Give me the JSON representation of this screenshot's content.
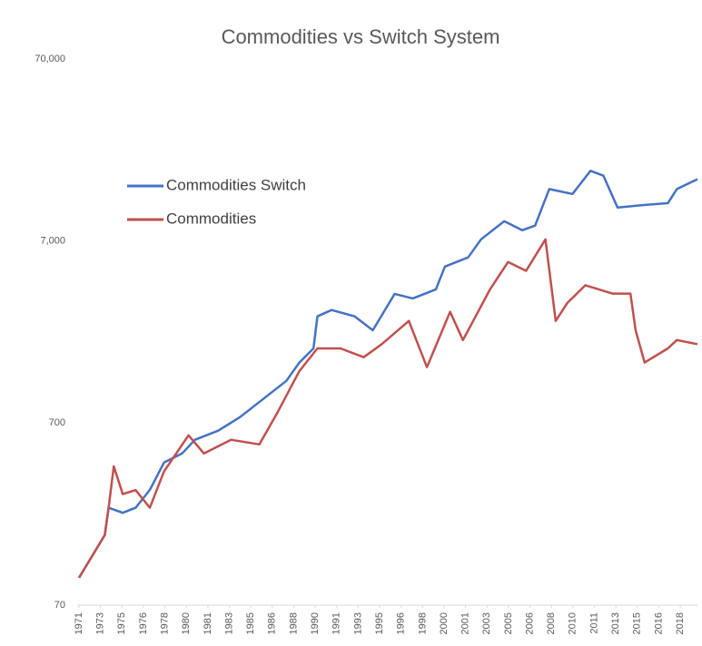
{
  "chart_data": {
    "type": "line",
    "title": "Commodities vs Switch System",
    "log_scale": true,
    "ylim": [
      70,
      70000
    ],
    "yticks": [
      70,
      700,
      {
        "value": 7000,
        "label": "7,000"
      },
      {
        "value": 70000,
        "label": "70,000"
      }
    ],
    "xlim": [
      1971,
      2019
    ],
    "xticks": [
      {
        "value": 1971,
        "label": "1971"
      },
      {
        "value": 1972.67,
        "label": "1973"
      },
      {
        "value": 1974.33,
        "label": "1975"
      },
      {
        "value": 1976,
        "label": "1976"
      },
      {
        "value": 1977.67,
        "label": "1978"
      },
      {
        "value": 1979.33,
        "label": "1980"
      },
      {
        "value": 1981,
        "label": "1981"
      },
      {
        "value": 1982.67,
        "label": "1983"
      },
      {
        "value": 1984.33,
        "label": "1985"
      },
      {
        "value": 1986,
        "label": "1986"
      },
      {
        "value": 1987.67,
        "label": "1988"
      },
      {
        "value": 1989.33,
        "label": "1990"
      },
      {
        "value": 1991,
        "label": "1991"
      },
      {
        "value": 1992.67,
        "label": "1993"
      },
      {
        "value": 1994.33,
        "label": "1995"
      },
      {
        "value": 1996,
        "label": "1996"
      },
      {
        "value": 1997.67,
        "label": "1998"
      },
      {
        "value": 1999.33,
        "label": "2000"
      },
      {
        "value": 2001,
        "label": "2001"
      },
      {
        "value": 2002.67,
        "label": "2003"
      },
      {
        "value": 2004.33,
        "label": "2005"
      },
      {
        "value": 2006,
        "label": "2006"
      },
      {
        "value": 2007.67,
        "label": "2008"
      },
      {
        "value": 2009.33,
        "label": "2010"
      },
      {
        "value": 2011,
        "label": "2011"
      },
      {
        "value": 2012.67,
        "label": "2013"
      },
      {
        "value": 2014.33,
        "label": "2015"
      },
      {
        "value": 2016,
        "label": "2016"
      },
      {
        "value": 2017.67,
        "label": "2018"
      }
    ],
    "legend": "upper left",
    "series": [
      {
        "name": "Commodities Switch",
        "color": "#4472c4",
        "x": [
          1971.0,
          1973.0,
          1973.3,
          1974.4,
          1975.4,
          1976.5,
          1977.6,
          1979.0,
          1980.0,
          1981.8,
          1983.5,
          1985.3,
          1987.1,
          1988.1,
          1989.2,
          1989.5,
          1990.6,
          1992.4,
          1993.8,
          1995.5,
          1996.9,
          1998.7,
          1999.4,
          2001.2,
          2002.2,
          2004.0,
          2005.4,
          2006.4,
          2007.5,
          2009.3,
          2010.7,
          2011.7,
          2012.8,
          2014.6,
          2016.7,
          2017.4,
          2019.0
        ],
        "values": [
          99,
          170,
          240,
          225,
          240,
          301,
          425,
          477,
          567,
          636,
          755,
          950,
          1195,
          1505,
          1800,
          2700,
          2925,
          2700,
          2265,
          3590,
          3390,
          3800,
          5070,
          5690,
          7150,
          9000,
          8030,
          8500,
          13500,
          12700,
          17000,
          16000,
          10700,
          11000,
          11300,
          13500,
          15300
        ]
      },
      {
        "name": "Commodities",
        "color": "#c0504d",
        "x": [
          1971.0,
          1973.0,
          1973.3,
          1973.7,
          1974.4,
          1975.4,
          1976.5,
          1977.6,
          1979.5,
          1980.7,
          1982.8,
          1985.0,
          1986.4,
          1988.1,
          1989.5,
          1991.3,
          1993.1,
          1994.5,
          1996.6,
          1998.0,
          1999.8,
          2000.8,
          2002.9,
          2004.3,
          2005.7,
          2007.2,
          2008.0,
          2008.9,
          2010.3,
          2012.4,
          2013.8,
          2014.2,
          2014.9,
          2016.7,
          2017.4,
          2019.0
        ],
        "values": [
          99,
          170,
          240,
          405,
          285,
          300,
          240,
          380,
          600,
          477,
          567,
          535,
          800,
          1350,
          1800,
          1800,
          1610,
          1900,
          2550,
          1420,
          2860,
          2000,
          3800,
          5370,
          4800,
          7150,
          2550,
          3200,
          4000,
          3600,
          3600,
          2265,
          1505,
          1800,
          2000,
          1900
        ]
      }
    ]
  }
}
